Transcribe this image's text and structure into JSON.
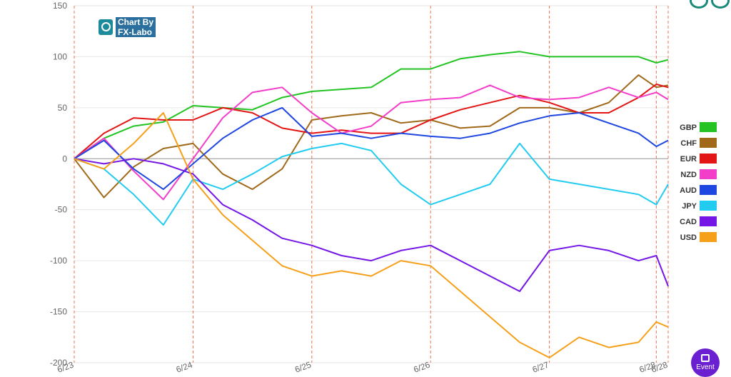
{
  "logo": {
    "line1": "Chart By",
    "line2": "FX-Labo"
  },
  "event_button": {
    "label": "Event"
  },
  "chart_data": {
    "type": "line",
    "title": "",
    "xlabel": "",
    "ylabel": "",
    "ylim": [
      -200,
      150
    ],
    "y_ticks": [
      150,
      100,
      50,
      0,
      -50,
      -100,
      -150,
      -200
    ],
    "x_range": [
      0,
      5
    ],
    "x_ticks": [
      {
        "label": "6/23",
        "x": 0
      },
      {
        "label": "6/24",
        "x": 1
      },
      {
        "label": "6/25",
        "x": 2
      },
      {
        "label": "6/26",
        "x": 3
      },
      {
        "label": "6/27",
        "x": 4
      },
      {
        "label": "6/28",
        "x": 4.9
      },
      {
        "label": "6/28",
        "x": 5
      }
    ],
    "vertical_lines": [
      0,
      1,
      2,
      3,
      4,
      4.9,
      5
    ],
    "legend_position": "right",
    "series": [
      {
        "name": "GBP",
        "color": "#22c322",
        "x": [
          0,
          0.25,
          0.5,
          0.75,
          1,
          1.25,
          1.5,
          1.75,
          2,
          2.25,
          2.5,
          2.75,
          3,
          3.25,
          3.5,
          3.75,
          4,
          4.25,
          4.5,
          4.75,
          4.9,
          5
        ],
        "y": [
          0,
          20,
          32,
          36,
          52,
          50,
          48,
          60,
          66,
          68,
          70,
          88,
          88,
          98,
          102,
          105,
          100,
          100,
          100,
          100,
          94,
          97
        ]
      },
      {
        "name": "CHF",
        "color": "#a0691a",
        "x": [
          0,
          0.25,
          0.5,
          0.75,
          1,
          1.25,
          1.5,
          1.75,
          2,
          2.25,
          2.5,
          2.75,
          3,
          3.25,
          3.5,
          3.75,
          4,
          4.25,
          4.5,
          4.75,
          4.9,
          5
        ],
        "y": [
          0,
          -38,
          -8,
          10,
          15,
          -15,
          -30,
          -10,
          38,
          42,
          45,
          35,
          38,
          30,
          32,
          50,
          50,
          45,
          55,
          82,
          70,
          72
        ]
      },
      {
        "name": "EUR",
        "color": "#e31414",
        "x": [
          0,
          0.25,
          0.5,
          0.75,
          1,
          1.25,
          1.5,
          1.75,
          2,
          2.25,
          2.5,
          2.75,
          3,
          3.25,
          3.5,
          3.75,
          4,
          4.25,
          4.5,
          4.75,
          4.9,
          5
        ],
        "y": [
          0,
          25,
          40,
          38,
          38,
          50,
          45,
          30,
          25,
          28,
          25,
          25,
          38,
          48,
          55,
          62,
          55,
          45,
          45,
          60,
          73,
          70
        ]
      },
      {
        "name": "NZD",
        "color": "#f23ec8",
        "x": [
          0,
          0.25,
          0.5,
          0.75,
          1,
          1.25,
          1.5,
          1.75,
          2,
          2.25,
          2.5,
          2.75,
          3,
          3.25,
          3.5,
          3.75,
          4,
          4.25,
          4.5,
          4.75,
          4.9,
          5
        ],
        "y": [
          0,
          20,
          -12,
          -40,
          0,
          40,
          65,
          70,
          45,
          25,
          32,
          55,
          58,
          60,
          72,
          60,
          58,
          60,
          70,
          60,
          65,
          58
        ]
      },
      {
        "name": "AUD",
        "color": "#1e46e0",
        "x": [
          0,
          0.25,
          0.5,
          0.75,
          1,
          1.25,
          1.5,
          1.75,
          2,
          2.25,
          2.5,
          2.75,
          3,
          3.25,
          3.5,
          3.75,
          4,
          4.25,
          4.5,
          4.75,
          4.9,
          5
        ],
        "y": [
          0,
          18,
          -10,
          -30,
          -5,
          20,
          38,
          50,
          22,
          25,
          20,
          25,
          22,
          20,
          25,
          35,
          42,
          45,
          35,
          25,
          12,
          18
        ]
      },
      {
        "name": "JPY",
        "color": "#22ccef",
        "x": [
          0,
          0.25,
          0.5,
          0.75,
          1,
          1.25,
          1.5,
          1.75,
          2,
          2.25,
          2.5,
          2.75,
          3,
          3.25,
          3.5,
          3.75,
          4,
          4.25,
          4.5,
          4.75,
          4.9,
          5
        ],
        "y": [
          0,
          -10,
          -35,
          -65,
          -20,
          -30,
          -15,
          2,
          10,
          15,
          8,
          -25,
          -45,
          -35,
          -25,
          15,
          -20,
          -25,
          -30,
          -35,
          -45,
          -25
        ]
      },
      {
        "name": "CAD",
        "color": "#7316e6",
        "x": [
          0,
          0.25,
          0.5,
          0.75,
          1,
          1.25,
          1.5,
          1.75,
          2,
          2.25,
          2.5,
          2.75,
          3,
          3.25,
          3.5,
          3.75,
          4,
          4.25,
          4.5,
          4.75,
          4.9,
          5
        ],
        "y": [
          0,
          -5,
          0,
          -5,
          -15,
          -45,
          -60,
          -78,
          -85,
          -95,
          -100,
          -90,
          -85,
          -100,
          -115,
          -130,
          -90,
          -85,
          -90,
          -100,
          -95,
          -125
        ]
      },
      {
        "name": "USD",
        "color": "#f6a019",
        "x": [
          0,
          0.25,
          0.5,
          0.75,
          1,
          1.25,
          1.5,
          1.75,
          2,
          2.25,
          2.5,
          2.75,
          3,
          3.25,
          3.5,
          3.75,
          4,
          4.25,
          4.5,
          4.75,
          4.9,
          5
        ],
        "y": [
          0,
          -10,
          15,
          45,
          -20,
          -55,
          -80,
          -105,
          -115,
          -110,
          -115,
          -100,
          -105,
          -130,
          -155,
          -180,
          -195,
          -175,
          -185,
          -180,
          -160,
          -165
        ]
      }
    ]
  }
}
